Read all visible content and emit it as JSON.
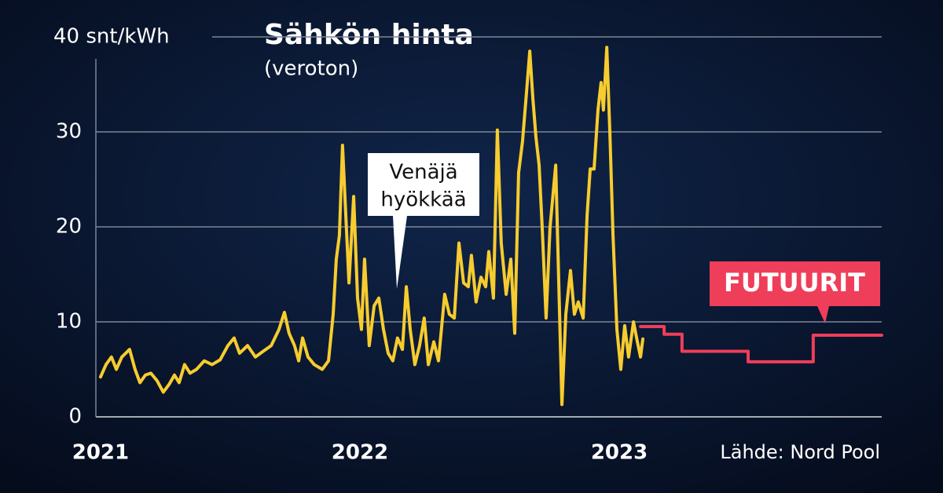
{
  "chart_data": {
    "type": "line",
    "title": "Sähkön hinta",
    "subtitle": "(veroton)",
    "annotation": [
      "Venäjä",
      "hyökkää"
    ],
    "source": "Lähde: Nord Pool",
    "xlim": [
      2020.982,
      2024.012
    ],
    "xticks": [
      2021,
      2022,
      2023
    ],
    "ylim": [
      0,
      40
    ],
    "yticks": [
      0,
      10,
      20,
      30,
      {
        "value": 40,
        "label": "40 snt/kWh"
      }
    ],
    "grid": true,
    "series": [
      {
        "color": "#f7cc2e",
        "x": [
          2021.0,
          2021.021,
          2021.042,
          2021.061,
          2021.082,
          2021.112,
          2021.133,
          2021.152,
          2021.173,
          2021.194,
          2021.218,
          2021.242,
          2021.264,
          2021.285,
          2021.303,
          2021.324,
          2021.345,
          2021.37,
          2021.4,
          2021.43,
          2021.461,
          2021.491,
          2021.515,
          2021.536,
          2021.567,
          2021.597,
          2021.627,
          2021.658,
          2021.688,
          2021.709,
          2021.727,
          2021.748,
          2021.764,
          2021.779,
          2021.8,
          2021.824,
          2021.855,
          2021.879,
          2021.897,
          2021.909,
          2021.921,
          2021.933,
          2021.945,
          2021.958,
          2021.976,
          2021.991,
          2022.006,
          2022.018,
          2022.036,
          2022.055,
          2022.073,
          2022.091,
          2022.109,
          2022.127,
          2022.145,
          2022.164,
          2022.179,
          2022.194,
          2022.212,
          2022.23,
          2022.248,
          2022.264,
          2022.285,
          2022.303,
          2022.327,
          2022.345,
          2022.364,
          2022.382,
          2022.4,
          2022.418,
          2022.43,
          2022.448,
          2022.467,
          2022.485,
          2022.497,
          2022.515,
          2022.53,
          2022.545,
          2022.564,
          2022.582,
          2022.597,
          2022.612,
          2022.627,
          2022.642,
          2022.655,
          2022.667,
          2022.679,
          2022.691,
          2022.703,
          2022.718,
          2022.733,
          2022.755,
          2022.77,
          2022.779,
          2022.794,
          2022.812,
          2022.827,
          2022.842,
          2022.861,
          2022.876,
          2022.888,
          2022.903,
          2022.918,
          2022.93,
          2022.939,
          2022.952,
          2022.964,
          2022.976,
          2022.991,
          2023.006,
          2023.021,
          2023.036,
          2023.055,
          2023.067,
          2023.082,
          2023.091
        ],
        "values": [
          4.2,
          5.5,
          6.3,
          5.0,
          6.3,
          7.1,
          5.0,
          3.6,
          4.4,
          4.6,
          3.8,
          2.6,
          3.4,
          4.4,
          3.6,
          5.5,
          4.6,
          5.0,
          5.9,
          5.5,
          6.0,
          7.5,
          8.3,
          6.7,
          7.5,
          6.3,
          6.9,
          7.5,
          9.2,
          11.0,
          8.8,
          7.5,
          5.9,
          8.3,
          6.3,
          5.5,
          5.0,
          5.9,
          10.8,
          16.6,
          19.1,
          28.6,
          21.6,
          14.1,
          23.2,
          12.5,
          9.2,
          16.6,
          7.5,
          11.7,
          12.5,
          9.2,
          6.7,
          5.9,
          8.3,
          7.1,
          13.7,
          9.2,
          5.5,
          7.5,
          10.4,
          5.5,
          7.9,
          5.9,
          12.9,
          10.8,
          10.4,
          18.3,
          14.1,
          13.7,
          17.0,
          12.1,
          14.7,
          13.7,
          17.4,
          12.5,
          30.2,
          18.3,
          12.9,
          16.6,
          8.8,
          25.7,
          29.0,
          34.0,
          38.5,
          33.5,
          29.4,
          26.5,
          19.9,
          10.4,
          19.9,
          26.5,
          10.8,
          1.3,
          10.8,
          15.4,
          10.8,
          12.1,
          10.4,
          21.2,
          26.1,
          26.1,
          32.3,
          35.2,
          32.3,
          38.9,
          29.8,
          19.1,
          9.2,
          5.0,
          9.6,
          6.3,
          10.0,
          8.3,
          6.3,
          8.2
        ]
      },
      {
        "name": "FUTUURIT",
        "color": "#ef3e5a",
        "step": true,
        "x": [
          2023.082,
          2023.173,
          2023.242,
          2023.497,
          2023.748,
          2024.012
        ],
        "values": [
          9.5,
          8.7,
          6.9,
          5.8,
          8.6,
          8.6
        ]
      }
    ]
  }
}
